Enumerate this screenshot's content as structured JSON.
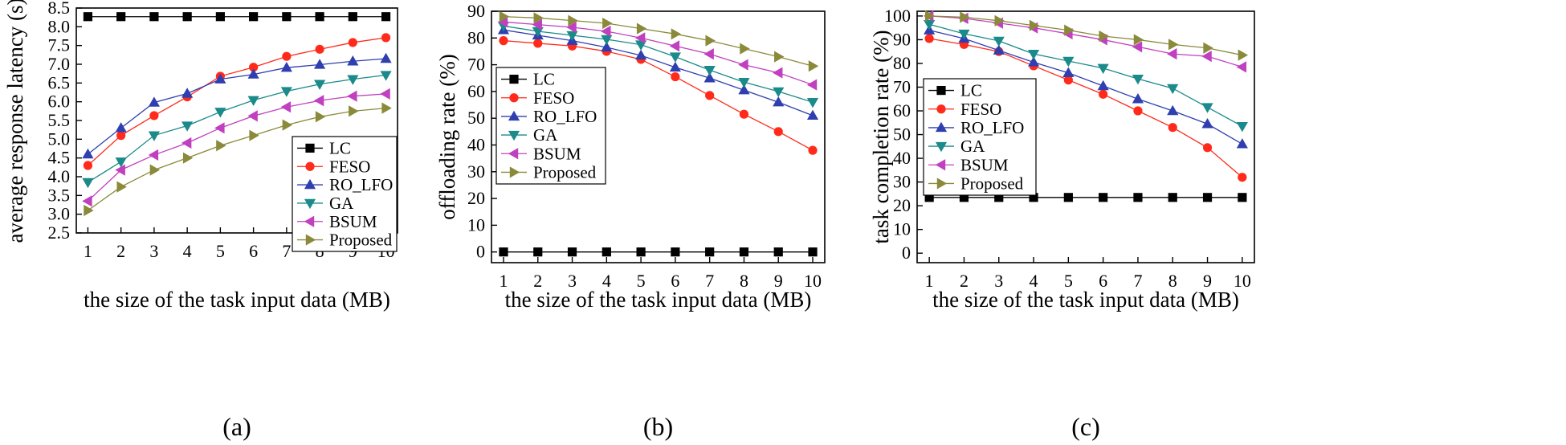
{
  "colors": {
    "LC": "#000000",
    "FESO": "#ff2a1a",
    "RO_LFO": "#2f3fb0",
    "GA": "#1b8a8a",
    "BSUM": "#c040c0",
    "Proposed": "#8a8a3a"
  },
  "chart_data": [
    {
      "type": "line",
      "panel_label": "(a)",
      "xlabel": "the size of the task input data (MB)",
      "ylabel": "average response latency (s)",
      "x": [
        1,
        2,
        3,
        4,
        5,
        6,
        7,
        8,
        9,
        10
      ],
      "xlim": [
        0.65,
        10.35
      ],
      "ylim": [
        2.5,
        8.5
      ],
      "yticks": [
        2.5,
        3.0,
        3.5,
        4.0,
        4.5,
        5.0,
        5.5,
        6.0,
        6.5,
        7.0,
        7.5,
        8.0,
        8.5
      ],
      "ytick_labels": [
        "2.5",
        "3.0",
        "3.5",
        "4.0",
        "4.5",
        "5.0",
        "5.5",
        "6.0",
        "6.5",
        "7.0",
        "7.5",
        "8.0",
        "8.5"
      ],
      "legend_position": "bottom-right",
      "series": [
        {
          "name": "LC",
          "marker": "square",
          "values": [
            8.27,
            8.27,
            8.27,
            8.27,
            8.27,
            8.27,
            8.27,
            8.27,
            8.27,
            8.27
          ]
        },
        {
          "name": "FESO",
          "marker": "circle",
          "values": [
            4.3,
            5.1,
            5.63,
            6.13,
            6.68,
            6.92,
            7.21,
            7.4,
            7.58,
            7.71
          ]
        },
        {
          "name": "RO_LFO",
          "marker": "triangle-up",
          "values": [
            4.6,
            5.3,
            5.98,
            6.22,
            6.6,
            6.73,
            6.91,
            6.99,
            7.08,
            7.15
          ]
        },
        {
          "name": "GA",
          "marker": "triangle-down",
          "values": [
            3.85,
            4.4,
            5.1,
            5.36,
            5.73,
            6.04,
            6.28,
            6.47,
            6.6,
            6.71
          ]
        },
        {
          "name": "BSUM",
          "marker": "triangle-left",
          "values": [
            3.35,
            4.18,
            4.58,
            4.9,
            5.3,
            5.62,
            5.86,
            6.03,
            6.15,
            6.21
          ]
        },
        {
          "name": "Proposed",
          "marker": "triangle-right",
          "values": [
            3.1,
            3.73,
            4.18,
            4.5,
            4.83,
            5.1,
            5.38,
            5.6,
            5.75,
            5.83
          ]
        }
      ]
    },
    {
      "type": "line",
      "panel_label": "(b)",
      "xlabel": "the size of the task input data (MB)",
      "ylabel": "offloading rate (%)",
      "x": [
        1,
        2,
        3,
        4,
        5,
        6,
        7,
        8,
        9,
        10
      ],
      "xlim": [
        0.65,
        10.35
      ],
      "ylim": [
        -4,
        90
      ],
      "yticks": [
        0,
        10,
        20,
        30,
        40,
        50,
        60,
        70,
        80,
        90
      ],
      "ytick_labels": [
        "0",
        "10",
        "20",
        "30",
        "40",
        "50",
        "60",
        "70",
        "80",
        "90"
      ],
      "legend_position": "center-left",
      "series": [
        {
          "name": "LC",
          "marker": "square",
          "values": [
            0,
            0,
            0,
            0,
            0,
            0,
            0,
            0,
            0,
            0
          ]
        },
        {
          "name": "FESO",
          "marker": "circle",
          "values": [
            79.0,
            78.0,
            77.0,
            75.0,
            72.0,
            65.5,
            58.5,
            51.5,
            45.0,
            38.0
          ]
        },
        {
          "name": "RO_LFO",
          "marker": "triangle-up",
          "values": [
            83.0,
            81.0,
            79.0,
            76.5,
            73.5,
            69.0,
            65.0,
            60.5,
            56.0,
            51.0
          ]
        },
        {
          "name": "GA",
          "marker": "triangle-down",
          "values": [
            84.5,
            82.5,
            81.0,
            79.5,
            77.5,
            73.0,
            68.0,
            63.5,
            60.0,
            56.0
          ]
        },
        {
          "name": "BSUM",
          "marker": "triangle-left",
          "values": [
            86.0,
            85.0,
            84.0,
            82.5,
            80.0,
            77.0,
            74.0,
            70.0,
            67.0,
            62.5
          ]
        },
        {
          "name": "Proposed",
          "marker": "triangle-right",
          "values": [
            88.0,
            87.5,
            86.5,
            85.5,
            83.5,
            81.5,
            79.0,
            76.0,
            73.0,
            69.5
          ]
        }
      ]
    },
    {
      "type": "line",
      "panel_label": "(c)",
      "xlabel": "the size of the task input data (MB)",
      "ylabel": "task completion rate (%)",
      "x": [
        1,
        2,
        3,
        4,
        5,
        6,
        7,
        8,
        9,
        10
      ],
      "xlim": [
        0.65,
        10.35
      ],
      "ylim": [
        -4,
        102
      ],
      "yticks": [
        0,
        10,
        20,
        30,
        40,
        50,
        60,
        70,
        80,
        90,
        100
      ],
      "ytick_labels": [
        "0",
        "10",
        "20",
        "30",
        "40",
        "50",
        "60",
        "70",
        "80",
        "90",
        "100"
      ],
      "legend_position": "center-left",
      "series": [
        {
          "name": "LC",
          "marker": "square",
          "values": [
            23.5,
            23.5,
            23.5,
            23.5,
            23.5,
            23.5,
            23.5,
            23.5,
            23.5,
            23.5
          ]
        },
        {
          "name": "FESO",
          "marker": "circle",
          "values": [
            90.5,
            88.0,
            85.0,
            79.0,
            73.0,
            67.0,
            60.0,
            53.0,
            44.5,
            32.0
          ]
        },
        {
          "name": "RO_LFO",
          "marker": "triangle-up",
          "values": [
            94.0,
            90.5,
            85.5,
            80.5,
            76.0,
            70.5,
            65.0,
            60.0,
            54.5,
            46.0
          ]
        },
        {
          "name": "GA",
          "marker": "triangle-down",
          "values": [
            96.5,
            92.5,
            89.5,
            84.0,
            81.0,
            78.0,
            73.5,
            69.5,
            61.5,
            53.5
          ]
        },
        {
          "name": "BSUM",
          "marker": "triangle-left",
          "values": [
            100.0,
            99.0,
            97.0,
            95.0,
            92.5,
            90.0,
            87.0,
            84.0,
            83.0,
            78.5
          ]
        },
        {
          "name": "Proposed",
          "marker": "triangle-right",
          "values": [
            100.0,
            99.5,
            98.0,
            96.0,
            94.0,
            91.5,
            90.0,
            88.0,
            86.5,
            83.5
          ]
        }
      ]
    }
  ]
}
